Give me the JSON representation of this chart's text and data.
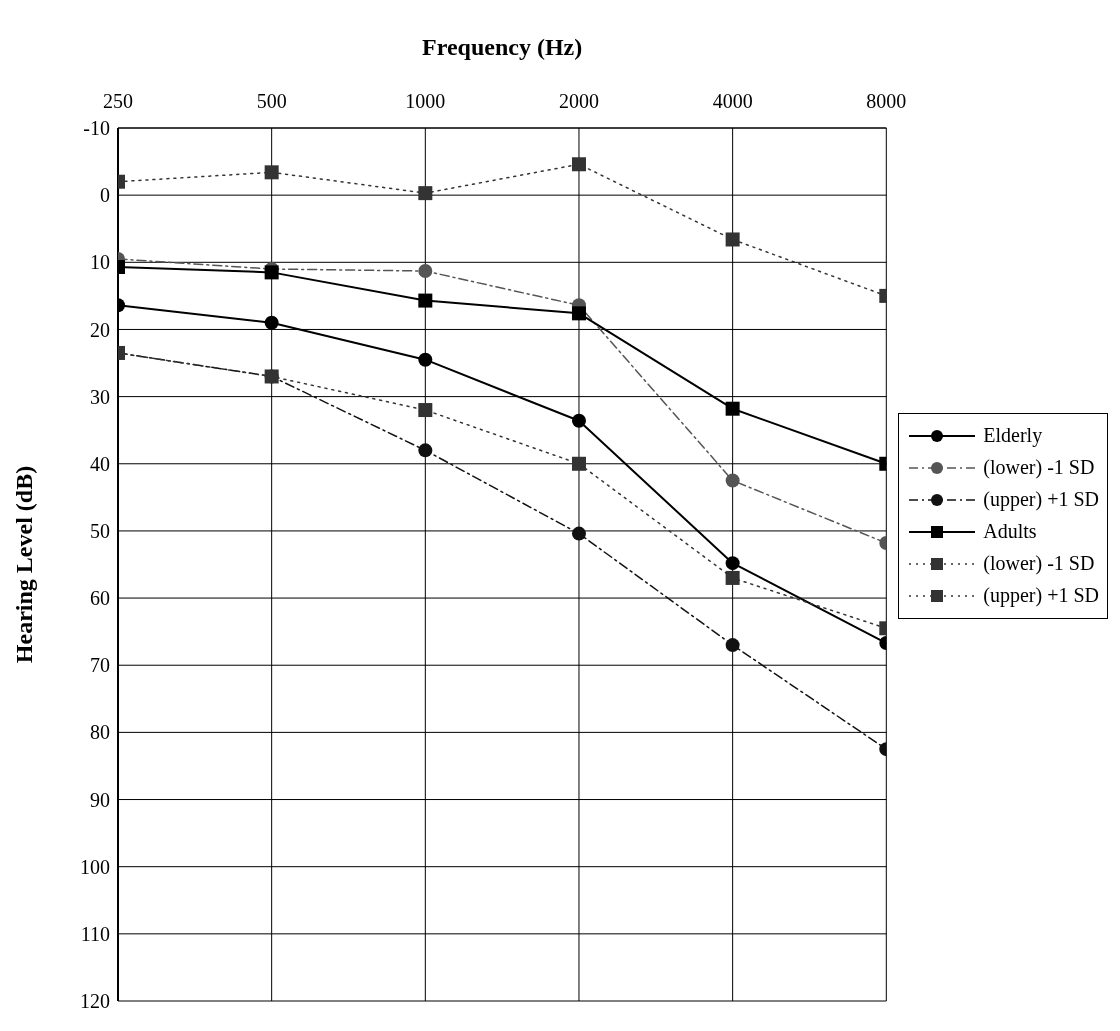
{
  "chart_data": {
    "type": "line",
    "title": "Frequency (Hz)",
    "ylabel": "Hearing Level (dB)",
    "categories": [
      "250",
      "500",
      "1000",
      "2000",
      "4000",
      "8000"
    ],
    "ylim": [
      120,
      -10
    ],
    "yticks": [
      -10,
      0,
      10,
      20,
      30,
      40,
      50,
      60,
      70,
      80,
      90,
      100,
      110,
      120
    ],
    "grid": true,
    "legend": "right",
    "series": [
      {
        "name": "Elderly",
        "color": "#000000",
        "marker": "circle",
        "line_style": "solid",
        "values": [
          16.4,
          19,
          24.5,
          33.6,
          54.8,
          66.7
        ]
      },
      {
        "name": "(lower) -1 SD",
        "color": "#555555",
        "marker": "circle",
        "line_style": "dashed",
        "values": [
          9.5,
          11,
          11.3,
          16.4,
          42.5,
          51.8
        ]
      },
      {
        "name": "(upper) +1 SD",
        "color": "#111111",
        "marker": "circle",
        "line_style": "dashed",
        "values": [
          23.5,
          27,
          38,
          50.4,
          67,
          82.5
        ]
      },
      {
        "name": "Adults",
        "color": "#000000",
        "marker": "square",
        "line_style": "solid",
        "values": [
          10.7,
          11.5,
          15.7,
          17.6,
          31.8,
          40
        ]
      },
      {
        "name": "(lower) -1 SD",
        "color": "#333333",
        "marker": "square",
        "line_style": "dotted",
        "values": [
          -2,
          -3.4,
          -0.3,
          -4.6,
          6.6,
          15
        ]
      },
      {
        "name": "(upper) +1 SD",
        "color": "#333333",
        "marker": "square",
        "line_style": "dotted",
        "values": [
          23.5,
          27,
          32,
          40,
          57,
          64.5
        ]
      }
    ]
  }
}
